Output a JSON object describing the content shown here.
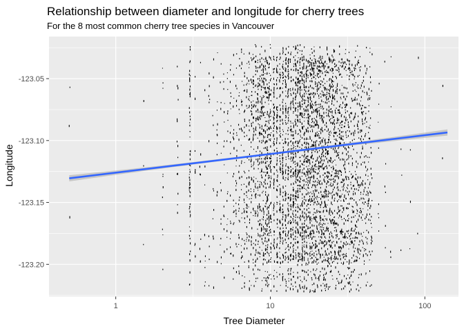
{
  "chart_data": {
    "type": "scatter",
    "title": "Relationship between diameter and longitude for cherry trees",
    "subtitle": "For the 8 most common cherry tree species in Vancouver",
    "xlabel": "Tree Diameter",
    "ylabel": "Longitude",
    "x_scale": "log10",
    "xlim": [
      0.37,
      165
    ],
    "ylim": [
      -123.226,
      -123.016
    ],
    "x_ticks": [
      1,
      10,
      100
    ],
    "x_tick_labels": [
      "1",
      "10",
      "100"
    ],
    "x_minor_ticks": [
      0.316,
      3.16,
      31.6
    ],
    "y_ticks": [
      -123.2,
      -123.15,
      -123.1,
      -123.05
    ],
    "y_tick_labels": [
      "-123.20",
      "-123.15",
      "-123.10",
      "-123.05"
    ],
    "grid": true,
    "panel_background": "#EBEBEB",
    "grid_color": "#FFFFFF",
    "point_color": "#000000",
    "point_density_profile": {
      "x_range": [
        0.5,
        140
      ],
      "y_range": [
        -123.222,
        -123.022
      ],
      "peak_x": 14,
      "note": "dense vertical bands at discrete diameters between 3 and 40"
    },
    "trend_line": {
      "method": "linear fit on log10 x",
      "color": "#3366FF",
      "ribbon_color": "#999999",
      "x": [
        0.5,
        140
      ],
      "y": [
        -123.1305,
        -123.0935
      ],
      "ribbon_halfwidth_ends": 0.0025,
      "ribbon_halfwidth_mid": 0.0008
    }
  }
}
